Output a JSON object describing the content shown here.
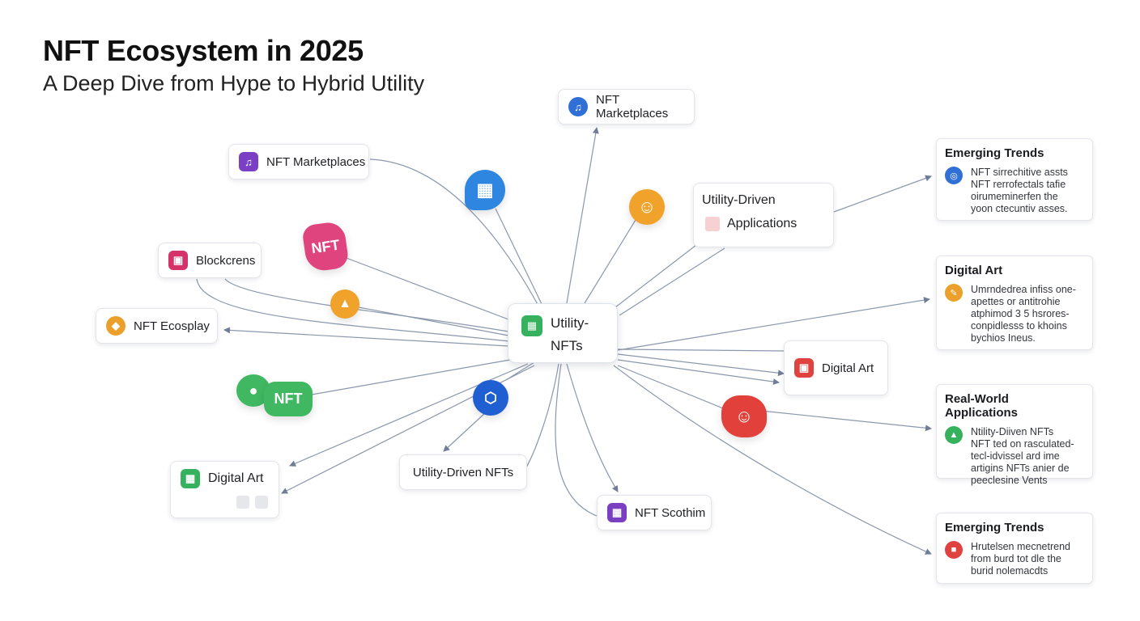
{
  "header": {
    "title": "NFT Ecosystem in 2025",
    "subtitle": "A Deep Dive from Hype to Hybrid Utility"
  },
  "center": {
    "line1": "Utility-",
    "line2": "NFTs",
    "icon": "grid-icon",
    "color": "#36b25f"
  },
  "nodes": {
    "marketplaces_top": {
      "label": "NFT Marketplaces",
      "icon": "music-note-icon",
      "color": "#2f6fd6"
    },
    "marketplaces_left": {
      "label": "NFT Marketplaces",
      "icon": "music-note-icon",
      "color": "#7b3fc4"
    },
    "blockchains": {
      "label": "Blockcrens",
      "icon": "screen-icon",
      "color": "#d6326a"
    },
    "ecosplay": {
      "label": "NFT Ecosplay",
      "icon": "diamond-icon",
      "color": "#eaa02a"
    },
    "digital_art_left": {
      "label": "Digital Art",
      "icon": "image-icon",
      "color": "#36b25f"
    },
    "utility_bottom": {
      "label": "Utility-Driven NFTs"
    },
    "scothim": {
      "label": "NFT Scothim",
      "icon": "grid-icon",
      "color": "#7b3fc4"
    },
    "digital_art_right": {
      "label": "Digital Art",
      "icon": "screen-icon",
      "color": "#e0433f"
    },
    "utility_apps": {
      "line1": "Utility-Driven",
      "line2": "Applications"
    }
  },
  "blobs": {
    "nft_pink": {
      "label": "NFT",
      "color": "#e0447f"
    },
    "nft_green": {
      "label": "NFT",
      "color": "#3fb861"
    },
    "blue_grid": {
      "icon": "apps-icon",
      "color": "#2f86e0"
    },
    "orange_face": {
      "icon": "face-icon",
      "color": "#f0a22a"
    },
    "orange_shield": {
      "icon": "shield-icon",
      "color": "#f0a22a"
    },
    "blue_hex": {
      "icon": "hexagon-icon",
      "color": "#1f5fd1"
    },
    "red_gear": {
      "icon": "gear-face-icon",
      "color": "#e2403a"
    }
  },
  "cards": [
    {
      "title": "Emerging Trends",
      "icon": "target-icon",
      "color": "#2f6fd6",
      "lines": [
        "NFT sirrechitive assts",
        "NFT rerrofectals tafie",
        "oirumeminerfen the",
        "yoon ctecuntiv asses."
      ]
    },
    {
      "title": "Digital Art",
      "icon": "brush-icon",
      "color": "#eaa02a",
      "lines": [
        "Umrndedrea infiss one-",
        "apettes or antitrohie",
        "atphimod 3 5 hsrores-",
        "conpidlesss to khoins",
        "bychios Ineus."
      ]
    },
    {
      "title": "Real-World Applications",
      "icon": "triangle-icon",
      "color": "#36b25f",
      "lines": [
        "Ntility-Diiven NFTs",
        "NFT ted on rasculated-",
        "tecl-idvissel ard ime",
        "artigins NFTs anier de",
        "peeclesine Vents"
      ]
    },
    {
      "title": "Emerging Trends",
      "icon": "car-icon",
      "color": "#e0433f",
      "lines": [
        "Hrutelsen mecnetrend",
        "from burd tot dle the",
        "burid nolemacdts"
      ]
    }
  ]
}
